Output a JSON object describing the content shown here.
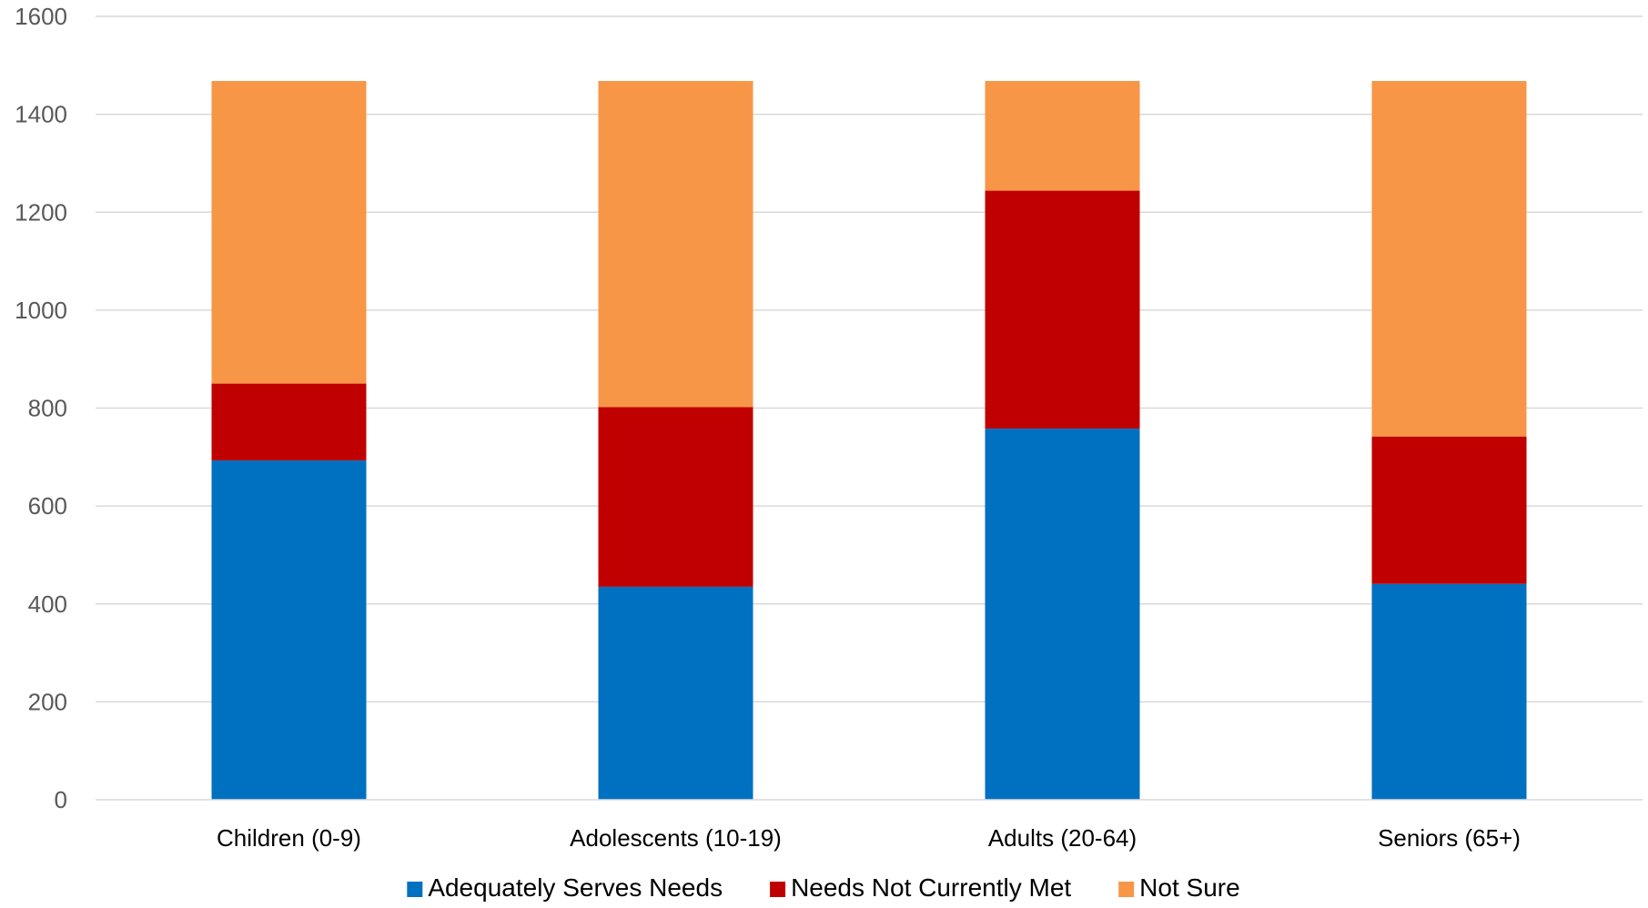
{
  "chart_data": {
    "type": "bar",
    "stacked": true,
    "title": "",
    "xlabel": "",
    "ylabel": "",
    "categories": [
      "Children (0-9)",
      "Adolescents (10-19)",
      "Adults (20-64)",
      "Seniors (65+)"
    ],
    "series": [
      {
        "name": "Adequately Serves Needs",
        "color": "#0070C0",
        "values": [
          693,
          435,
          758,
          441
        ]
      },
      {
        "name": "Needs Not Currently Met",
        "color": "#C00000",
        "values": [
          157,
          367,
          486,
          301
        ]
      },
      {
        "name": "Not Sure",
        "color": "#F79646",
        "values": [
          618,
          666,
          224,
          726
        ]
      }
    ],
    "ylim": [
      0,
      1600
    ],
    "yticks": [
      0,
      200,
      400,
      600,
      800,
      1000,
      1200,
      1400,
      1600
    ],
    "grid": true,
    "legend": "bottom"
  }
}
